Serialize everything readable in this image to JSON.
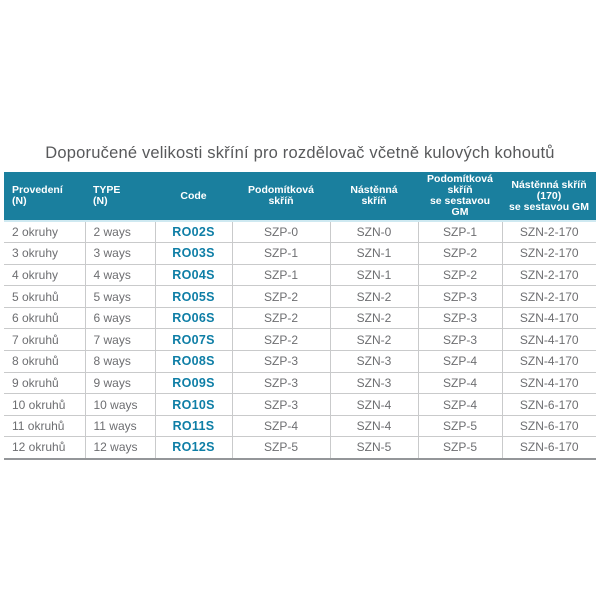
{
  "title": "Doporučené velikosti skříní pro rozdělovač včetně kulových kohoutů",
  "colors": {
    "page_bg": "#ffffff",
    "title_color": "#58595b",
    "header_bg": "#1a7f9e",
    "header_text": "#ffffff",
    "header_accent": "#cfe9f1",
    "body_text": "#6d6e71",
    "code_color": "#0e7ea6",
    "grid": "#c9cacb",
    "bottom_border": "#949699"
  },
  "table": {
    "columns": [
      {
        "id": "provedeni",
        "label": "Provedení\n(N)",
        "align": "left",
        "width": 81
      },
      {
        "id": "type",
        "label": "TYPE\n(N)",
        "align": "left",
        "width": 70
      },
      {
        "id": "code",
        "label": "Code",
        "align": "center",
        "width": 77
      },
      {
        "id": "szp",
        "label": "Podomítková\nskříň",
        "align": "center",
        "width": 98
      },
      {
        "id": "szn",
        "label": "Nástěnná\nskříň",
        "align": "center",
        "width": 88
      },
      {
        "id": "szp-gm",
        "label": "Podomítková\nskříň\nse sestavou\nGM",
        "align": "center",
        "width": 84
      },
      {
        "id": "szn-gm",
        "label": "Nástěnná skříň\n(170)\nse sestavou GM",
        "align": "center",
        "width": 94
      }
    ],
    "rows": [
      [
        "2 okruhy",
        "2 ways",
        "RO02S",
        "SZP-0",
        "SZN-0",
        "SZP-1",
        "SZN-2-170"
      ],
      [
        "3 okruhy",
        "3 ways",
        "RO03S",
        "SZP-1",
        "SZN-1",
        "SZP-2",
        "SZN-2-170"
      ],
      [
        "4 okruhy",
        "4 ways",
        "RO04S",
        "SZP-1",
        "SZN-1",
        "SZP-2",
        "SZN-2-170"
      ],
      [
        "5 okruhů",
        "5 ways",
        "RO05S",
        "SZP-2",
        "SZN-2",
        "SZP-3",
        "SZN-2-170"
      ],
      [
        "6 okruhů",
        "6 ways",
        "RO06S",
        "SZP-2",
        "SZN-2",
        "SZP-3",
        "SZN-4-170"
      ],
      [
        "7 okruhů",
        "7 ways",
        "RO07S",
        "SZP-2",
        "SZN-2",
        "SZP-3",
        "SZN-4-170"
      ],
      [
        "8 okruhů",
        "8 ways",
        "RO08S",
        "SZP-3",
        "SZN-3",
        "SZP-4",
        "SZN-4-170"
      ],
      [
        "9 okruhů",
        "9 ways",
        "RO09S",
        "SZP-3",
        "SZN-3",
        "SZP-4",
        "SZN-4-170"
      ],
      [
        "10 okruhů",
        "10 ways",
        "RO10S",
        "SZP-3",
        "SZN-4",
        "SZP-4",
        "SZN-6-170"
      ],
      [
        "11 okruhů",
        "11 ways",
        "RO11S",
        "SZP-4",
        "SZN-4",
        "SZP-5",
        "SZN-6-170"
      ],
      [
        "12 okruhů",
        "12 ways",
        "RO12S",
        "SZP-5",
        "SZN-5",
        "SZP-5",
        "SZN-6-170"
      ]
    ]
  }
}
